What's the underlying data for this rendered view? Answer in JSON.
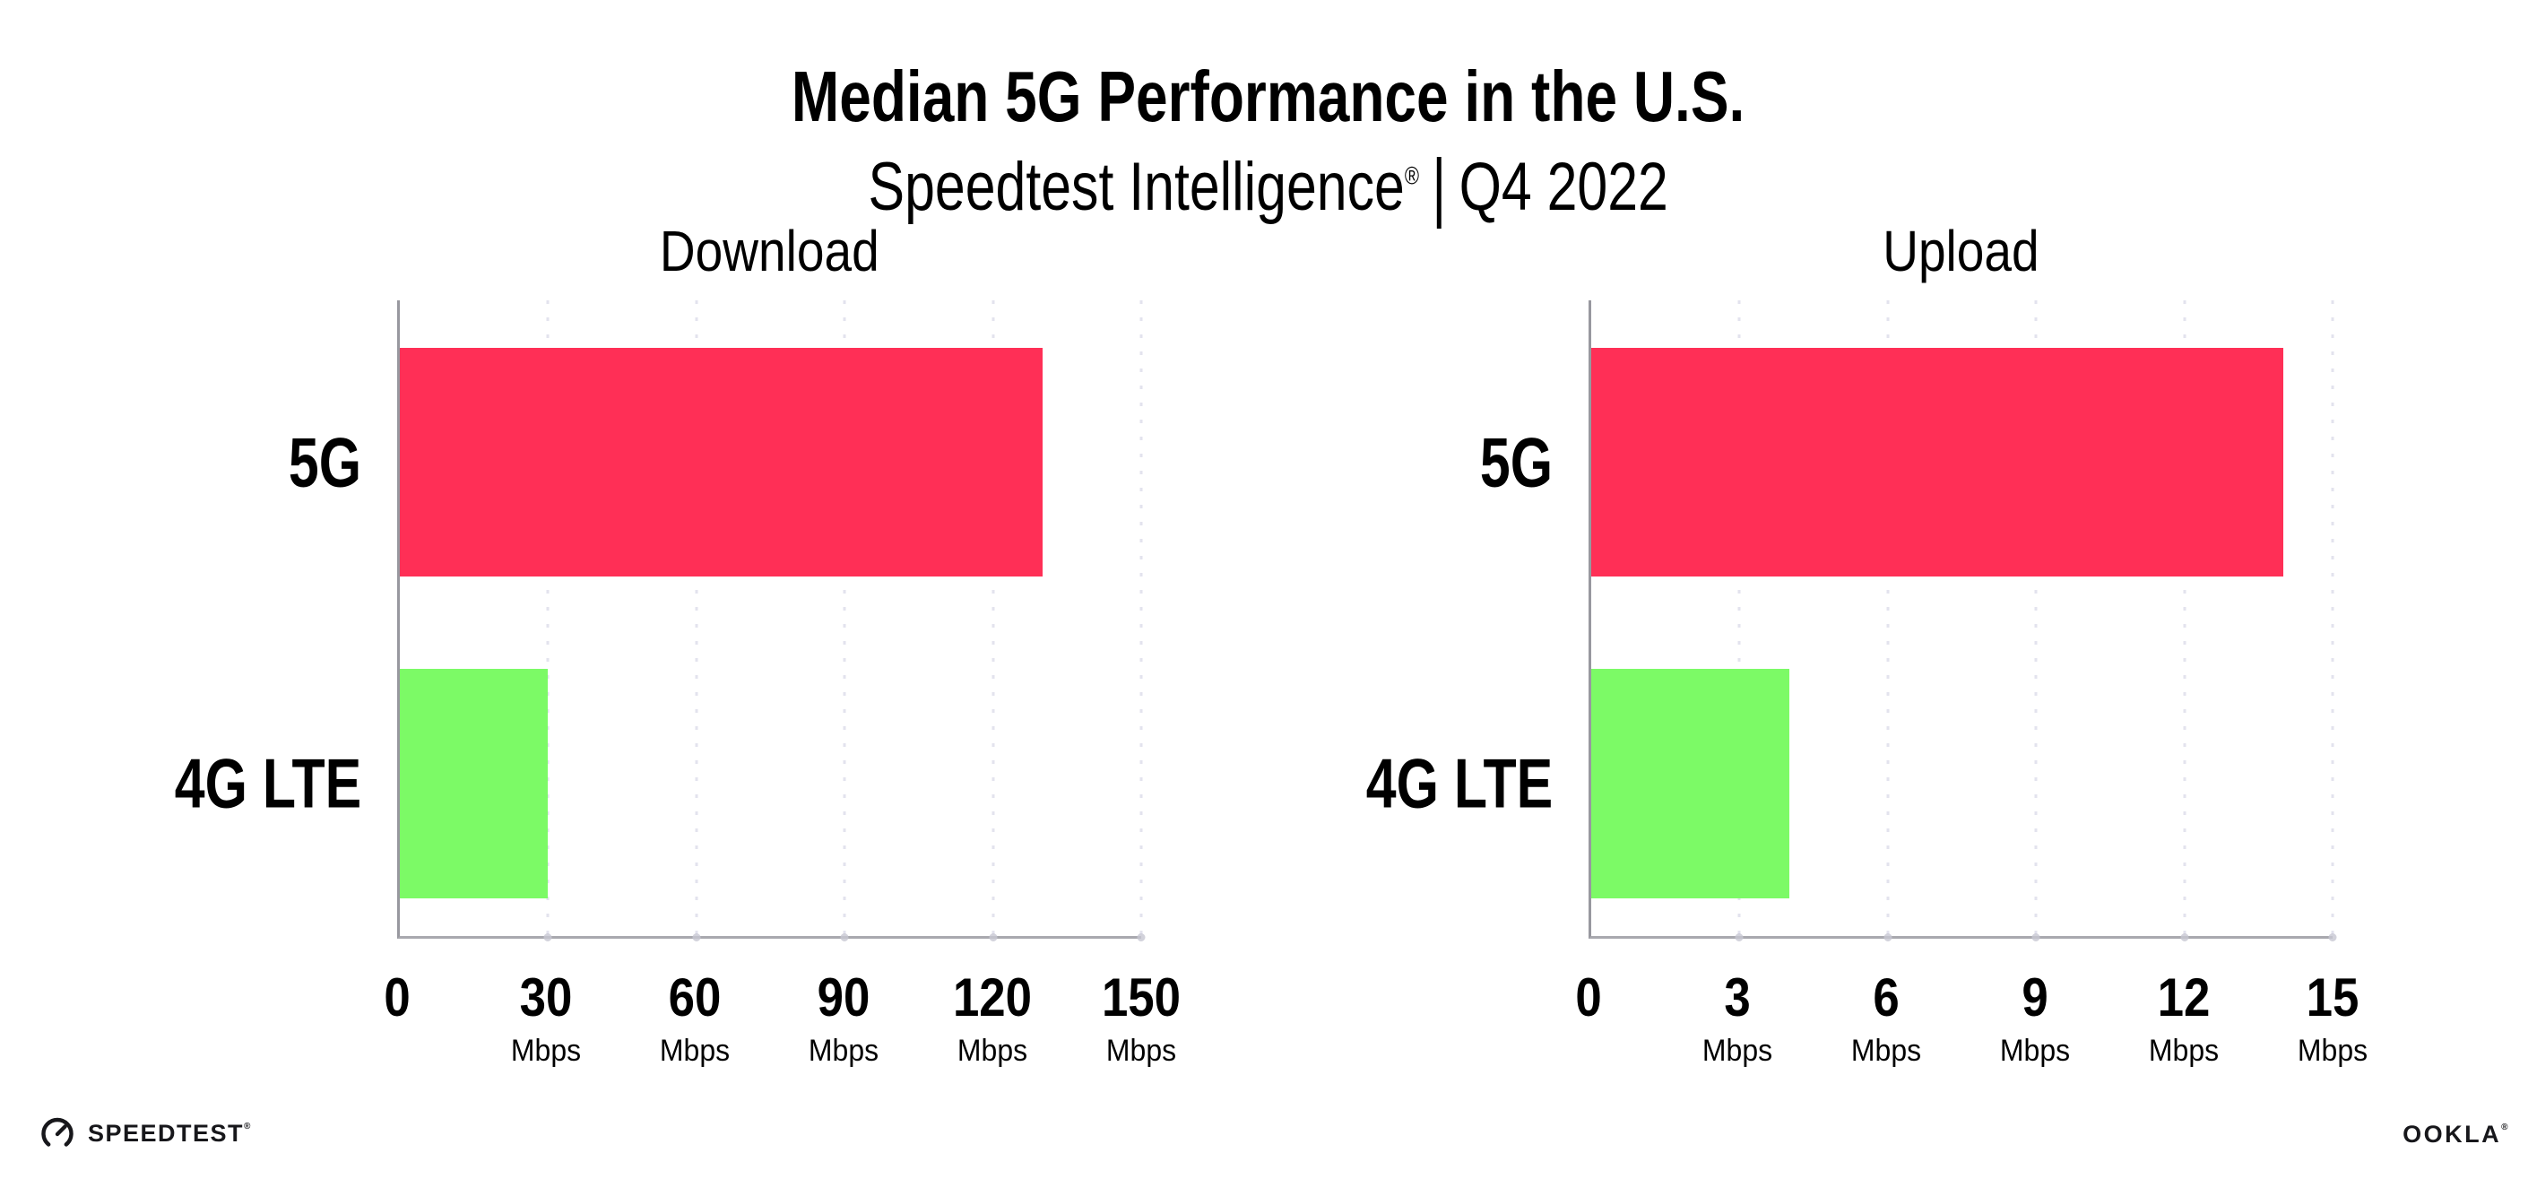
{
  "header": {
    "title": "Median 5G Performance in the U.S.",
    "subtitle": {
      "brand": "Speedtest Intelligence",
      "registered_mark": "®",
      "separator": "|",
      "period": "Q4 2022"
    }
  },
  "chart_data": [
    {
      "type": "bar",
      "orientation": "horizontal",
      "title": "Download",
      "categories": [
        "5G",
        "4G LTE"
      ],
      "values": [
        130,
        30
      ],
      "unit": "Mbps",
      "xlim": [
        0,
        150
      ],
      "xticks": [
        0,
        30,
        60,
        90,
        120,
        150
      ],
      "colors": [
        "#FF2F56",
        "#7CFA66"
      ],
      "grid": "dotted-vertical",
      "legend": "none"
    },
    {
      "type": "bar",
      "orientation": "horizontal",
      "title": "Upload",
      "categories": [
        "5G",
        "4G LTE"
      ],
      "values": [
        14,
        4
      ],
      "unit": "Mbps",
      "xlim": [
        0,
        15
      ],
      "xticks": [
        0,
        3,
        6,
        9,
        12,
        15
      ],
      "colors": [
        "#FF2F56",
        "#7CFA66"
      ],
      "grid": "dotted-vertical",
      "legend": "none"
    }
  ],
  "footer": {
    "speedtest": {
      "label": "SPEEDTEST",
      "mark": "®"
    },
    "ookla": {
      "label": "OOKLA",
      "mark": "®"
    }
  },
  "colors": {
    "bar_5g": "#FF2F56",
    "bar_4g_lte": "#7CFA66",
    "axis": "#98989F",
    "gridline_dots": "#E3E3EE",
    "text": "#000000",
    "logo": "#17171B",
    "background": "#FFFFFF"
  }
}
